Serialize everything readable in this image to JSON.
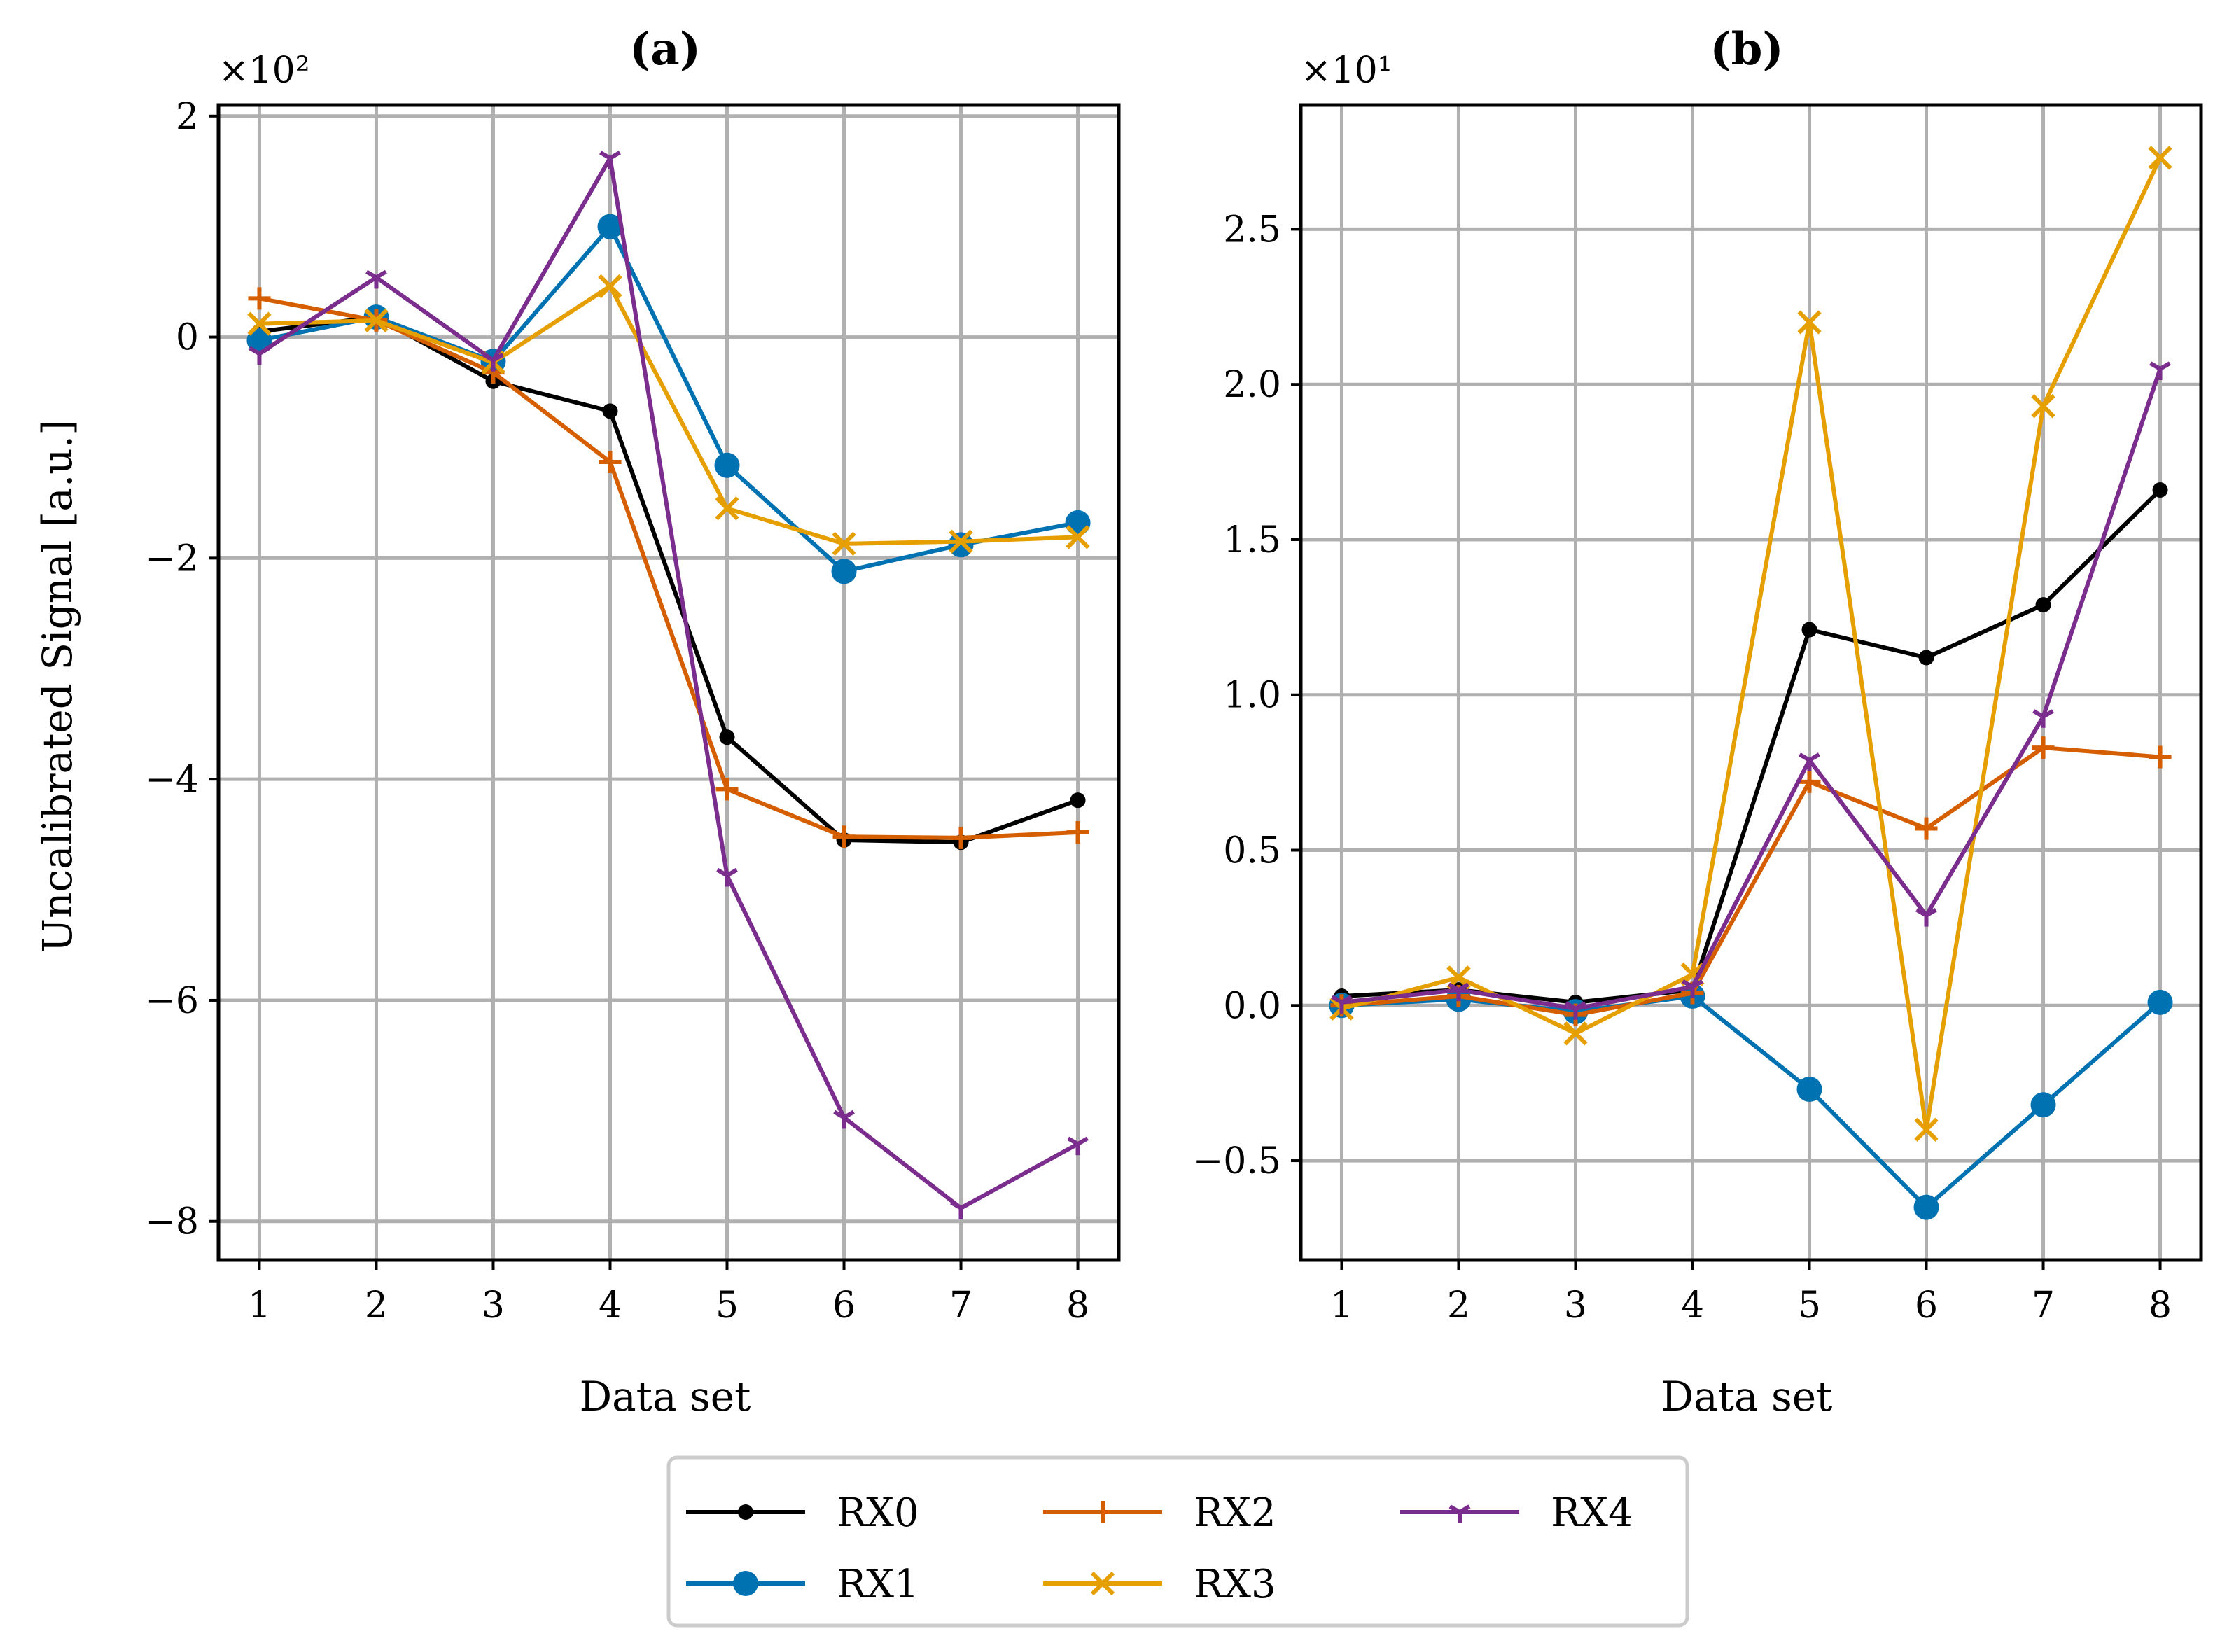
{
  "chart_data": [
    {
      "type": "line",
      "title": "(a)",
      "xlabel": "Data set",
      "ylabel": "Uncalibrated Signal [a.u.]",
      "multiplier_label": "×10²",
      "x": [
        1,
        2,
        3,
        4,
        5,
        6,
        7,
        8
      ],
      "xlim": [
        0.65,
        8.35
      ],
      "ylim": [
        -8.35,
        2.1
      ],
      "yticks": [
        2,
        0,
        -2,
        -4,
        -6,
        -8
      ],
      "ytick_labels": [
        "2",
        "0",
        "−2",
        "−4",
        "−6",
        "−8"
      ],
      "xtick_labels": [
        "1",
        "2",
        "3",
        "4",
        "5",
        "6",
        "7",
        "8"
      ],
      "grid": true,
      "series": [
        {
          "name": "RX0",
          "color": "#000000",
          "marker": "dot",
          "values": [
            0.05,
            0.18,
            -0.4,
            -0.67,
            -3.62,
            -4.55,
            -4.57,
            -4.19
          ]
        },
        {
          "name": "RX1",
          "color": "#0072b2",
          "marker": "circle",
          "values": [
            -0.03,
            0.18,
            -0.22,
            1.0,
            -1.16,
            -2.12,
            -1.88,
            -1.68
          ]
        },
        {
          "name": "RX2",
          "color": "#d55e00",
          "marker": "plus",
          "values": [
            0.35,
            0.15,
            -0.32,
            -1.13,
            -4.09,
            -4.52,
            -4.53,
            -4.48
          ]
        },
        {
          "name": "RX3",
          "color": "#e69f00",
          "marker": "x",
          "values": [
            0.12,
            0.15,
            -0.23,
            0.46,
            -1.55,
            -1.87,
            -1.85,
            -1.81
          ]
        },
        {
          "name": "RX4",
          "color": "#7b2d8e",
          "marker": "tri",
          "values": [
            -0.15,
            0.54,
            -0.21,
            1.62,
            -4.87,
            -7.06,
            -7.88,
            -7.3
          ]
        }
      ]
    },
    {
      "type": "line",
      "title": "(b)",
      "xlabel": "Data set",
      "ylabel": "",
      "multiplier_label": "×10¹",
      "x": [
        1,
        2,
        3,
        4,
        5,
        6,
        7,
        8
      ],
      "xlim": [
        0.65,
        8.35
      ],
      "ylim": [
        -0.82,
        2.9
      ],
      "yticks": [
        2.5,
        2.0,
        1.5,
        1.0,
        0.5,
        0.0,
        -0.5
      ],
      "ytick_labels": [
        "2.5",
        "2.0",
        "1.5",
        "1.0",
        "0.5",
        "0.0",
        "−0.5"
      ],
      "xtick_labels": [
        "1",
        "2",
        "3",
        "4",
        "5",
        "6",
        "7",
        "8"
      ],
      "grid": true,
      "series": [
        {
          "name": "RX0",
          "color": "#000000",
          "marker": "dot",
          "values": [
            0.03,
            0.05,
            0.01,
            0.05,
            1.21,
            1.12,
            1.29,
            1.66
          ]
        },
        {
          "name": "RX1",
          "color": "#0072b2",
          "marker": "circle",
          "values": [
            0.0,
            0.02,
            -0.02,
            0.03,
            -0.27,
            -0.65,
            -0.32,
            0.01
          ]
        },
        {
          "name": "RX2",
          "color": "#d55e00",
          "marker": "plus",
          "values": [
            0.0,
            0.03,
            -0.03,
            0.04,
            0.72,
            0.57,
            0.83,
            0.8
          ]
        },
        {
          "name": "RX3",
          "color": "#e69f00",
          "marker": "x",
          "values": [
            -0.01,
            0.09,
            -0.09,
            0.1,
            2.2,
            -0.4,
            1.93,
            2.73
          ]
        },
        {
          "name": "RX4",
          "color": "#7b2d8e",
          "marker": "tri",
          "values": [
            0.01,
            0.05,
            -0.01,
            0.06,
            0.79,
            0.29,
            0.93,
            2.05
          ]
        }
      ]
    }
  ],
  "legend": {
    "placement": "bottom-center",
    "entries": [
      {
        "name": "RX0",
        "color": "#000000",
        "marker": "dot"
      },
      {
        "name": "RX2",
        "color": "#d55e00",
        "marker": "plus"
      },
      {
        "name": "RX4",
        "color": "#7b2d8e",
        "marker": "tri"
      },
      {
        "name": "RX1",
        "color": "#0072b2",
        "marker": "circle"
      },
      {
        "name": "RX3",
        "color": "#e69f00",
        "marker": "x"
      }
    ]
  }
}
